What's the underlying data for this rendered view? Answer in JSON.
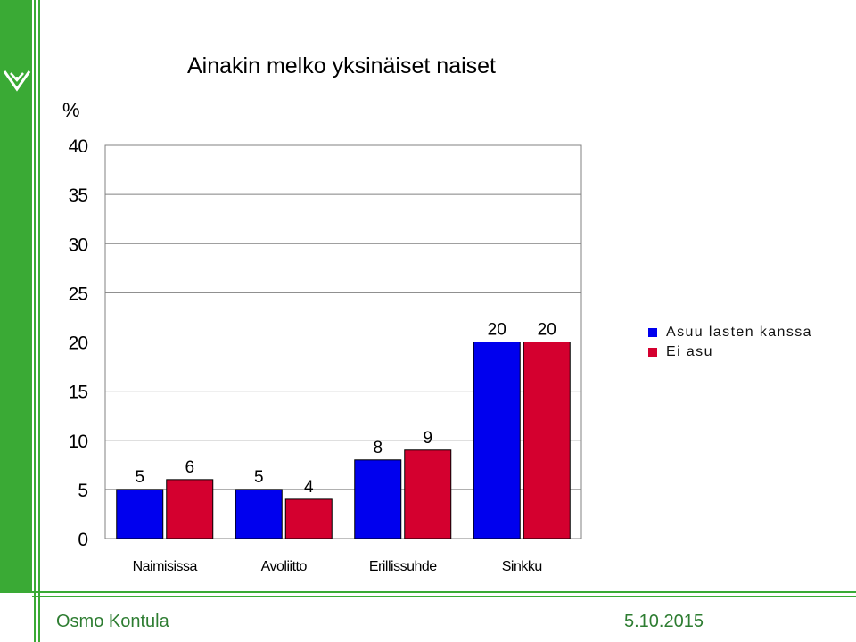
{
  "chart_data": {
    "type": "bar",
    "title": "Ainakin melko yksinäiset naiset",
    "ylabel": "%",
    "ylim": [
      0,
      40
    ],
    "yticks": [
      0,
      5,
      10,
      15,
      20,
      25,
      30,
      35,
      40
    ],
    "categories": [
      "Naimisissa",
      "Avoliitto",
      "Erillissuhde",
      "Sinkku"
    ],
    "series": [
      {
        "name": "Asuu lasten kanssa",
        "color": "#0000ee",
        "values": [
          5,
          5,
          8,
          20
        ]
      },
      {
        "name": "Ei asu",
        "color": "#d4002f",
        "values": [
          6,
          4,
          9,
          20
        ]
      }
    ],
    "grid": true,
    "legend_position": "right"
  },
  "footer": {
    "author": "Osmo Kontula",
    "date": "5.10.2015"
  },
  "colors": {
    "brand_green": "#3aaa35",
    "footer_text": "#2e7d32"
  },
  "icons": {
    "logo": "heart-leaf-logo-icon"
  }
}
